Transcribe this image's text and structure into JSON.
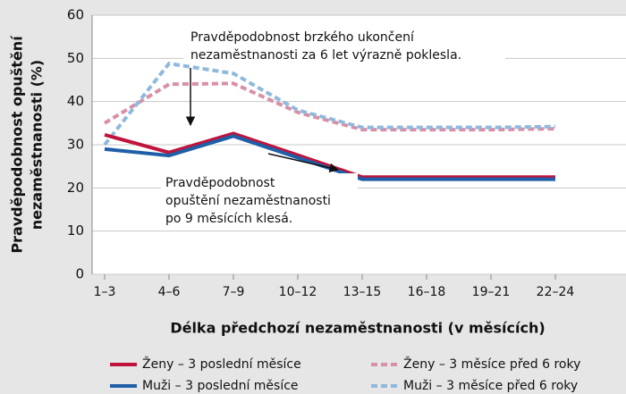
{
  "chart_data": {
    "type": "line",
    "ylabel": [
      "Pravděpodobnost opuštění",
      "nezaměstnanosti (%)"
    ],
    "xlabel": "Délka předchozí nezaměstnanosti (v měsících)",
    "categories": [
      "1–3",
      "4–6",
      "7–9",
      "10–12",
      "13–15",
      "16–18",
      "19–21",
      "22–24"
    ],
    "ylim": [
      0,
      60
    ],
    "yticks": [
      0,
      10,
      20,
      30,
      40,
      50,
      60
    ],
    "grid": true,
    "series": [
      {
        "name": "Ženy – 3 poslední měsíce",
        "color": "#c0143c",
        "dashed": false,
        "values": [
          32.3,
          28.2,
          32.6,
          27.6,
          22.5,
          22.5,
          22.5,
          22.5
        ]
      },
      {
        "name": "Muži – 3 poslední měsíce",
        "color": "#1f5fa8",
        "dashed": false,
        "values": [
          29,
          27.5,
          32,
          27,
          22,
          22,
          22,
          22
        ]
      },
      {
        "name": "Ženy – 3 měsíce před 6 roky",
        "color": "#d98fa6",
        "dashed": true,
        "values": [
          35,
          44,
          44.2,
          37.5,
          33.5,
          33.5,
          33.5,
          33.7
        ]
      },
      {
        "name": "Muži – 3 měsíce před 6 roky",
        "color": "#8fb9dd",
        "dashed": true,
        "values": [
          30,
          48.8,
          46.5,
          38,
          34,
          34,
          34,
          34.2
        ]
      }
    ],
    "annotations": [
      [
        "Pravděpodobnost brzkého ukončení",
        "nezaměstnanosti za 6 let výrazně poklesla."
      ],
      [
        "Pravděpodobnost",
        "opuštění nezaměstnanosti",
        "po 9 měsících klesá."
      ]
    ]
  }
}
